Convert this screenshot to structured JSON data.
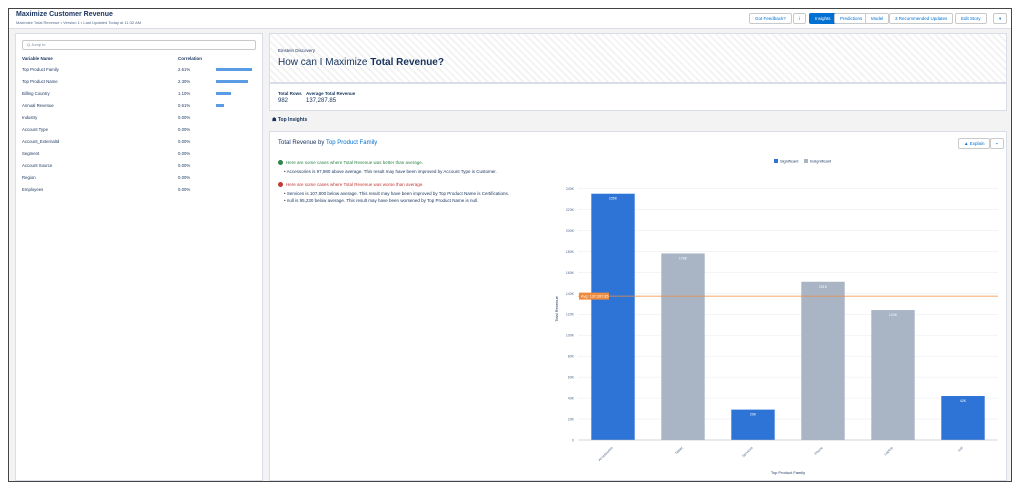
{
  "header": {
    "title": "Maximize Customer Revenue",
    "subtitle": "Maximize Total Revenue • Version 1 • Last Updated Today at 11:32 AM",
    "buttons": [
      "Got Feedback?",
      "Insights",
      "Predictions",
      "Model",
      "3 Recommended Updates",
      "Edit Story"
    ]
  },
  "variables": {
    "search_placeholder": "Q Jump to",
    "name_header": "Variable Name",
    "correlation_header": "Correlation",
    "names": [
      "Top Product Family",
      "Top Product Name",
      "Billing Country",
      "Annual Revenue",
      "Industry",
      "Account Type",
      "Account_ExternalId",
      "Segment",
      "Account Source",
      "Region",
      "Employees"
    ],
    "values": [
      2.61,
      2.3,
      1.1,
      0.61,
      0,
      0,
      0,
      0,
      0,
      0,
      0
    ],
    "value_labels": [
      "2.61%",
      "2.30%",
      "1.10%",
      "0.61%",
      "0.00%",
      "0.00%",
      "0.00%",
      "0.00%",
      "0.00%",
      "0.00%",
      "0.00%"
    ]
  },
  "hero": {
    "kicker": "Einstein Discovery",
    "question_prefix": "How can I Maximize",
    "question_target": "Total Revenue?"
  },
  "stats": {
    "rows_label": "Total Rows",
    "rows_value": "982",
    "avg_label": "Average Total Revenue",
    "avg_value": "137,287.85"
  },
  "section_title": "Top Insights",
  "card": {
    "title_prefix": "Total Revenue by",
    "title_target": "Top Product Family",
    "explain": "Explain",
    "better_heading": "Here are some cases where Total Revenue was better than average.",
    "better_items": [
      "Accessories is 97,980 above average. This result may have been improved by Account Type is Customer."
    ],
    "worse_heading": "Here are some cases where Total Revenue was worse than average.",
    "worse_items": [
      "Services is 107,800 below average. This result may have been improved by Top Product Name is Certifications.",
      "null is 95,230 below average. This result may have been worsened by Top Product Name is null."
    ]
  },
  "chart_data": {
    "type": "bar",
    "x_label": "Top Product Family",
    "y_label": "Total Revenue",
    "categories": [
      "Accessories",
      "Tablet",
      "Services",
      "Phone",
      "Laptop",
      "null"
    ],
    "values": [
      235000,
      178000,
      29000,
      151000,
      124000,
      42000
    ],
    "value_labels": [
      "235K",
      "178K",
      "29K",
      "151K",
      "124K",
      "42K"
    ],
    "colors": [
      "#2e74d6",
      "#a9b4c4",
      "#2e74d6",
      "#a9b4c4",
      "#a9b4c4",
      "#2e74d6"
    ],
    "legend": [
      {
        "name": "Significant",
        "color": "#2e74d6"
      },
      {
        "name": "Insignificant",
        "color": "#a9b4c4"
      }
    ],
    "average": {
      "value": 137287.85,
      "label": "Avg: 137,287.85",
      "color": "#f08a3c"
    },
    "ylim": [
      0,
      250000
    ],
    "yticks": [
      0,
      {
        "value": 20000,
        "label": "20K"
      },
      {
        "value": 40000,
        "label": "40K"
      },
      {
        "value": 60000,
        "label": "60K"
      },
      {
        "value": 80000,
        "label": "80K"
      },
      {
        "value": 100000,
        "label": "100K"
      },
      {
        "value": 120000,
        "label": "120K"
      },
      {
        "value": 140000,
        "label": "140K"
      },
      {
        "value": 160000,
        "label": "160K"
      },
      {
        "value": 180000,
        "label": "180K"
      },
      {
        "value": 200000,
        "label": "200K"
      },
      {
        "value": 220000,
        "label": "220K"
      },
      {
        "value": 240000,
        "label": "240K"
      }
    ],
    "grid": true
  }
}
